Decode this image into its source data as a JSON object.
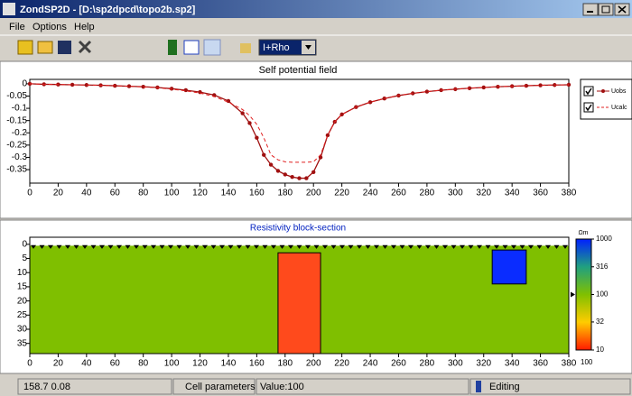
{
  "window": {
    "title": "ZondSP2D - [D:\\sp2dpcd\\topo2b.sp2]",
    "menu": [
      "File",
      "Options",
      "Help"
    ],
    "combo": "I+Rho"
  },
  "chart_data": [
    {
      "type": "line",
      "title": "Self potential field",
      "x": [
        0,
        10,
        20,
        30,
        40,
        50,
        60,
        70,
        80,
        90,
        100,
        110,
        120,
        130,
        140,
        150,
        155,
        160,
        165,
        170,
        175,
        180,
        185,
        190,
        195,
        200,
        205,
        210,
        215,
        220,
        230,
        240,
        250,
        260,
        270,
        280,
        290,
        300,
        310,
        320,
        330,
        340,
        350,
        360,
        370,
        380
      ],
      "series": [
        {
          "name": "Uobs",
          "color": "#a01010",
          "values": [
            0,
            -0.002,
            -0.003,
            -0.004,
            -0.005,
            -0.006,
            -0.008,
            -0.01,
            -0.012,
            -0.015,
            -0.02,
            -0.026,
            -0.034,
            -0.046,
            -0.07,
            -0.12,
            -0.16,
            -0.22,
            -0.29,
            -0.33,
            -0.355,
            -0.37,
            -0.38,
            -0.385,
            -0.385,
            -0.36,
            -0.3,
            -0.21,
            -0.155,
            -0.125,
            -0.095,
            -0.075,
            -0.06,
            -0.048,
            -0.039,
            -0.032,
            -0.026,
            -0.022,
            -0.018,
            -0.015,
            -0.012,
            -0.01,
            -0.008,
            -0.006,
            -0.005,
            -0.004
          ]
        },
        {
          "name": "Ucalc",
          "color": "#e02020",
          "values": [
            0,
            -0.002,
            -0.003,
            -0.004,
            -0.005,
            -0.006,
            -0.008,
            -0.01,
            -0.013,
            -0.016,
            -0.022,
            -0.029,
            -0.038,
            -0.052,
            -0.075,
            -0.105,
            -0.13,
            -0.165,
            -0.22,
            -0.29,
            -0.31,
            -0.318,
            -0.32,
            -0.32,
            -0.32,
            -0.318,
            -0.29,
            -0.21,
            -0.155,
            -0.125,
            -0.095,
            -0.075,
            -0.06,
            -0.048,
            -0.039,
            -0.032,
            -0.026,
            -0.022,
            -0.018,
            -0.015,
            -0.012,
            -0.01,
            -0.008,
            -0.006,
            -0.005,
            -0.004
          ]
        }
      ],
      "xlim": [
        0,
        380
      ],
      "xticks": [
        0,
        20,
        40,
        60,
        80,
        100,
        120,
        140,
        160,
        180,
        200,
        220,
        240,
        260,
        280,
        300,
        320,
        340,
        360,
        380
      ],
      "ylim": [
        -0.405,
        0.018
      ],
      "yticks": [
        0,
        -0.05,
        -0.1,
        -0.15,
        -0.2,
        -0.25,
        -0.3,
        -0.35
      ]
    },
    {
      "type": "section",
      "title": "Resistivity block-section",
      "background": {
        "resistivity": 100,
        "color": "#7fbf00"
      },
      "blocks": [
        {
          "x0": 175,
          "x1": 205,
          "z0": 3,
          "z1": 38.6,
          "resistivity": 10,
          "color": "#ff4a1c"
        },
        {
          "x0": 326,
          "x1": 350,
          "z0": 2,
          "z1": 14,
          "resistivity": 1000,
          "color": "#0a2cff"
        }
      ],
      "xlim": [
        0,
        380
      ],
      "xticks": [
        0,
        20,
        40,
        60,
        80,
        100,
        120,
        140,
        160,
        180,
        200,
        220,
        240,
        260,
        280,
        300,
        320,
        340,
        360,
        380
      ],
      "ylim": [
        38.6,
        -2.5
      ],
      "yticks": [
        0,
        5,
        10,
        15,
        20,
        25,
        30,
        35
      ],
      "colorbar": {
        "unit": "Ωm",
        "clim": [
          10,
          1000
        ],
        "log": true,
        "ticks": [
          1000,
          316,
          100,
          32,
          10
        ],
        "colormap": [
          "#ff1a00",
          "#ffcc00",
          "#80c000",
          "#20a080",
          "#0020ff"
        ],
        "current_value": 100
      }
    }
  ],
  "status_bar": {
    "coords": "158.7 0.08",
    "label": "Cell parameters",
    "value": "Value:100",
    "mode": "Editing"
  }
}
